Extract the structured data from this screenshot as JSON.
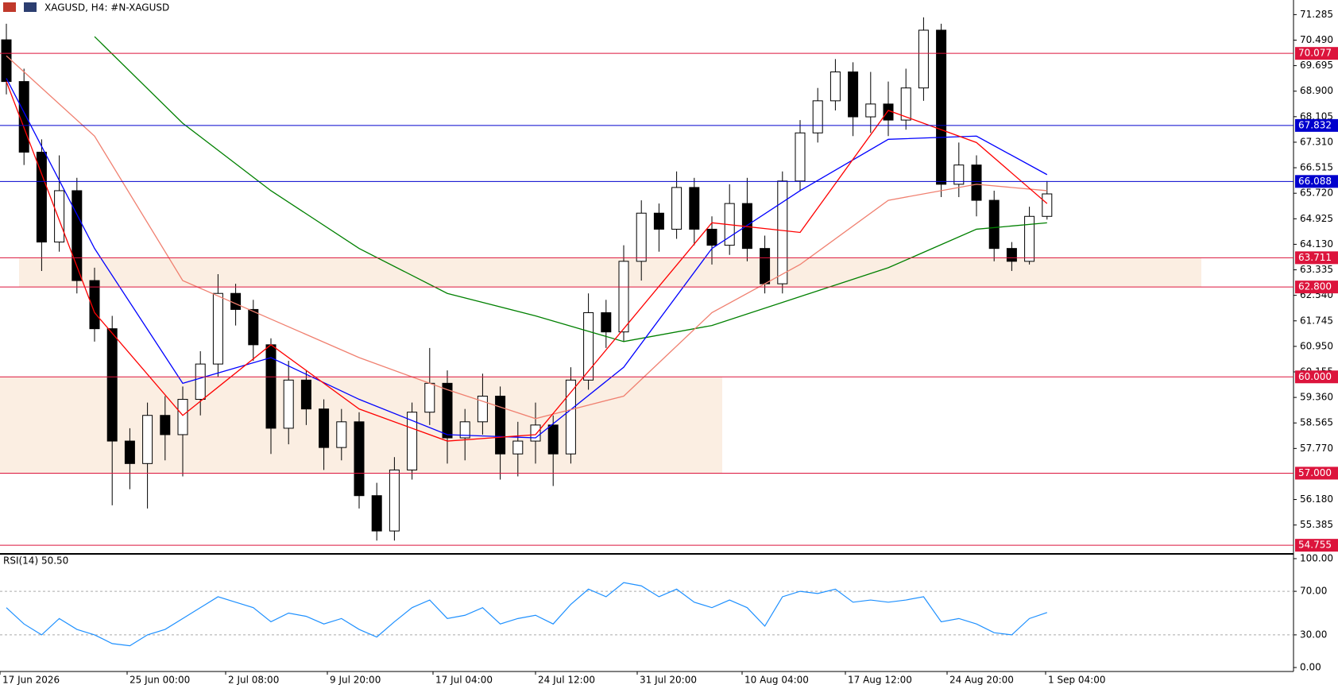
{
  "chart_data": [
    {
      "type": "candlestick",
      "title": "XAGUSD, H4:  #N-XAGUSD",
      "x_labels": [
        "17 Jun 2026",
        "25 Jun 00:00",
        "2 Jul 08:00",
        "9 Jul 20:00",
        "17 Jul 04:00",
        "24 Jul 12:00",
        "31 Jul 20:00",
        "10 Aug 04:00",
        "17 Aug 12:00",
        "24 Aug 20:00",
        "1 Sep 04:00"
      ],
      "open": [
        70.5,
        69.2,
        67.0,
        64.2,
        65.8,
        63.0,
        61.5,
        58.0,
        57.3,
        58.8,
        58.2,
        59.3,
        60.4,
        62.6,
        62.1,
        61.0,
        58.4,
        59.9,
        59.0,
        57.8,
        58.6,
        56.3,
        55.2,
        57.1,
        58.9,
        59.8,
        58.1,
        58.6,
        59.4,
        57.6,
        58.0,
        58.5,
        57.6,
        59.9,
        62.0,
        61.4,
        63.6,
        65.1,
        64.6,
        65.9,
        64.6,
        64.1,
        65.4,
        64.0,
        62.9,
        66.1,
        67.6,
        68.6,
        69.5,
        68.1,
        68.5,
        68.0,
        69.0,
        70.8,
        66.0,
        66.6,
        65.5,
        64.0,
        63.6,
        65.0
      ],
      "high": [
        71.0,
        69.6,
        67.4,
        66.9,
        66.2,
        63.4,
        61.9,
        58.4,
        59.2,
        59.4,
        59.7,
        60.8,
        63.2,
        62.9,
        62.4,
        61.2,
        60.5,
        60.2,
        59.3,
        59.0,
        58.9,
        56.7,
        57.5,
        59.2,
        60.9,
        60.2,
        59.0,
        60.1,
        59.7,
        58.6,
        59.2,
        58.8,
        60.3,
        62.6,
        62.4,
        64.1,
        65.5,
        65.4,
        66.4,
        66.2,
        65.0,
        66.0,
        66.2,
        64.4,
        66.4,
        68.0,
        69.0,
        69.9,
        69.8,
        69.5,
        69.2,
        69.6,
        71.2,
        71.0,
        67.3,
        66.9,
        65.8,
        64.2,
        65.3,
        66.1
      ],
      "low": [
        68.8,
        66.6,
        63.3,
        63.9,
        62.6,
        61.1,
        56.0,
        56.5,
        55.9,
        57.4,
        56.9,
        58.8,
        60.0,
        61.6,
        60.5,
        57.6,
        57.9,
        58.5,
        57.1,
        57.4,
        55.9,
        54.9,
        54.9,
        56.8,
        58.5,
        57.3,
        57.4,
        58.2,
        56.8,
        56.9,
        57.3,
        56.6,
        57.3,
        59.6,
        60.9,
        61.1,
        63.0,
        63.9,
        64.3,
        64.1,
        63.5,
        63.8,
        63.6,
        62.6,
        62.6,
        65.8,
        67.3,
        68.3,
        67.5,
        67.6,
        67.5,
        67.7,
        68.6,
        65.6,
        65.6,
        65.0,
        63.6,
        63.3,
        63.5,
        64.9
      ],
      "close": [
        69.2,
        67.0,
        64.2,
        65.8,
        63.0,
        61.5,
        58.0,
        57.3,
        58.8,
        58.2,
        59.3,
        60.4,
        62.6,
        62.1,
        61.0,
        58.4,
        59.9,
        59.0,
        57.8,
        58.6,
        56.3,
        55.2,
        57.1,
        58.9,
        59.8,
        58.1,
        58.6,
        59.4,
        57.6,
        58.0,
        58.5,
        57.6,
        59.9,
        62.0,
        61.4,
        63.6,
        65.1,
        64.6,
        65.9,
        64.6,
        64.1,
        65.4,
        64.0,
        62.9,
        66.1,
        67.6,
        68.6,
        69.5,
        68.1,
        68.5,
        68.0,
        69.0,
        70.8,
        66.0,
        66.6,
        65.5,
        64.0,
        63.6,
        65.0,
        65.7
      ],
      "ylim": [
        54.585,
        71.74
      ],
      "yticks": [
        {
          "value": 71.285,
          "label": "71.285"
        },
        {
          "value": 70.49,
          "label": "70.490"
        },
        {
          "value": 69.695,
          "label": "69.695"
        },
        {
          "value": 68.9,
          "label": "68.900"
        },
        {
          "value": 68.105,
          "label": "68.105"
        },
        {
          "value": 67.31,
          "label": "67.310"
        },
        {
          "value": 66.515,
          "label": "66.515"
        },
        {
          "value": 65.72,
          "label": "65.720"
        },
        {
          "value": 64.925,
          "label": "64.925"
        },
        {
          "value": 64.13,
          "label": "64.130"
        },
        {
          "value": 63.335,
          "label": "63.335"
        },
        {
          "value": 62.54,
          "label": "62.540"
        },
        {
          "value": 61.745,
          "label": "61.745"
        },
        {
          "value": 60.95,
          "label": "60.950"
        },
        {
          "value": 60.155,
          "label": "60.155"
        },
        {
          "value": 59.36,
          "label": "59.360"
        },
        {
          "value": 58.565,
          "label": "58.565"
        },
        {
          "value": 57.77,
          "label": "57.770"
        },
        {
          "value": 56.18,
          "label": "56.180"
        },
        {
          "value": 55.385,
          "label": "55.385"
        }
      ],
      "levels": [
        {
          "value": 70.077,
          "label": "70.077",
          "color": "#dc143c"
        },
        {
          "value": 67.832,
          "label": "67.832",
          "color": "#0000cd"
        },
        {
          "value": 66.088,
          "label": "66.088",
          "color": "#0000cd"
        },
        {
          "value": 63.711,
          "label": "63.711",
          "color": "#dc143c"
        },
        {
          "value": 62.8,
          "label": "62.800",
          "color": "#dc143c"
        },
        {
          "value": 60.0,
          "label": "60.000",
          "color": "#dc143c"
        },
        {
          "value": 57.0,
          "label": "57.000",
          "color": "#dc143c"
        },
        {
          "value": 54.755,
          "label": "54.755",
          "color": "#dc143c"
        }
      ],
      "zones": [
        {
          "from": 62.8,
          "to": 63.711,
          "color": "#fbeee2"
        },
        {
          "from": 57.0,
          "to": 60.0,
          "color": "#fbeee2"
        }
      ],
      "moving_averages": [
        {
          "color": "#008000",
          "x": [
            0,
            5,
            10,
            15,
            20,
            25,
            30,
            35,
            40,
            45,
            50,
            55,
            59
          ],
          "values": [
            null,
            70.6,
            67.9,
            65.8,
            64.0,
            62.6,
            61.9,
            61.1,
            61.6,
            62.5,
            63.4,
            64.6,
            64.8
          ]
        },
        {
          "color": "#0000ff",
          "x": [
            0,
            5,
            10,
            15,
            20,
            25,
            30,
            35,
            40,
            45,
            50,
            55,
            59
          ],
          "values": [
            69.3,
            64.0,
            59.8,
            60.6,
            59.3,
            58.2,
            58.1,
            60.3,
            64.0,
            65.8,
            67.4,
            67.5,
            66.3
          ]
        },
        {
          "color": "#f08070",
          "x": [
            0,
            5,
            10,
            15,
            20,
            25,
            30,
            35,
            40,
            45,
            50,
            55,
            59
          ],
          "values": [
            70.0,
            67.5,
            63.0,
            61.8,
            60.6,
            59.6,
            58.7,
            59.4,
            62.0,
            63.5,
            65.5,
            66.0,
            65.8
          ]
        },
        {
          "color": "#ff0000",
          "x": [
            0,
            5,
            10,
            15,
            20,
            25,
            30,
            35,
            40,
            45,
            50,
            55,
            59
          ],
          "values": [
            69.2,
            62.0,
            58.8,
            61.0,
            59.0,
            58.0,
            58.2,
            61.5,
            64.8,
            64.5,
            68.3,
            67.3,
            65.4
          ]
        }
      ]
    },
    {
      "type": "line",
      "title": "RSI(14) 50.50",
      "color": "#1e90ff",
      "values": [
        55,
        40,
        30,
        45,
        35,
        30,
        22,
        20,
        30,
        35,
        45,
        55,
        65,
        60,
        55,
        42,
        50,
        47,
        40,
        45,
        35,
        28,
        42,
        55,
        62,
        45,
        48,
        55,
        40,
        45,
        48,
        40,
        58,
        72,
        65,
        78,
        75,
        65,
        72,
        60,
        55,
        62,
        55,
        38,
        65,
        70,
        68,
        72,
        60,
        62,
        60,
        62,
        65,
        42,
        45,
        40,
        32,
        30,
        45,
        50.5
      ],
      "ylim": [
        0,
        100
      ],
      "yticks": [
        {
          "value": 100,
          "label": "100.00"
        },
        {
          "value": 70,
          "label": "70.00"
        },
        {
          "value": 30,
          "label": "30.00"
        },
        {
          "value": 0,
          "label": "0.00"
        }
      ]
    }
  ]
}
